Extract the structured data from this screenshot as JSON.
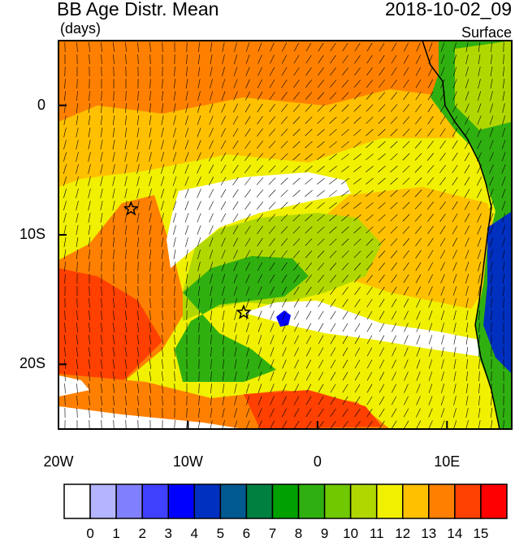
{
  "header": {
    "title": "BB Age Distr. Mean",
    "units": "(days)",
    "timestamp": "2018-10-02_09",
    "level": "Surface"
  },
  "axes": {
    "lat_ticks": [
      {
        "label": "0",
        "lat": 0
      },
      {
        "label": "10S",
        "lat": -10
      },
      {
        "label": "20S",
        "lat": -20
      }
    ],
    "lon_ticks": [
      {
        "label": "20W",
        "lon": -20
      },
      {
        "label": "10W",
        "lon": -10
      },
      {
        "label": "0",
        "lon": 0
      },
      {
        "label": "10E",
        "lon": 10
      }
    ],
    "lon_range": [
      -20,
      15
    ],
    "lat_range": [
      -25,
      5
    ]
  },
  "colorbar": {
    "labels": [
      "0",
      "1",
      "2",
      "3",
      "4",
      "5",
      "6",
      "7",
      "8",
      "9",
      "10",
      "11",
      "12",
      "13",
      "14",
      "15"
    ],
    "colors": [
      "#ffffff",
      "#b4b4ff",
      "#8080ff",
      "#4040ff",
      "#0000ff",
      "#0030c0",
      "#005a90",
      "#008040",
      "#00a000",
      "#30b010",
      "#70c800",
      "#b0d800",
      "#f0f000",
      "#ffc000",
      "#ff8000",
      "#ff4000",
      "#ff0000"
    ]
  },
  "markers": [
    {
      "name": "star-marker",
      "lon": -14.4,
      "lat": -8.0
    },
    {
      "name": "star-marker",
      "lon": -5.7,
      "lat": -16.0
    }
  ],
  "map_colors": {
    "ocean_base": "#f0f000",
    "orange": "#ff8000",
    "yellow_orange": "#ffc000",
    "red_orange": "#ff4000",
    "green": "#30b010",
    "light_green": "#b0d800",
    "white": "#ffffff",
    "blue": "#0000ff",
    "land_green": "#30b010"
  }
}
